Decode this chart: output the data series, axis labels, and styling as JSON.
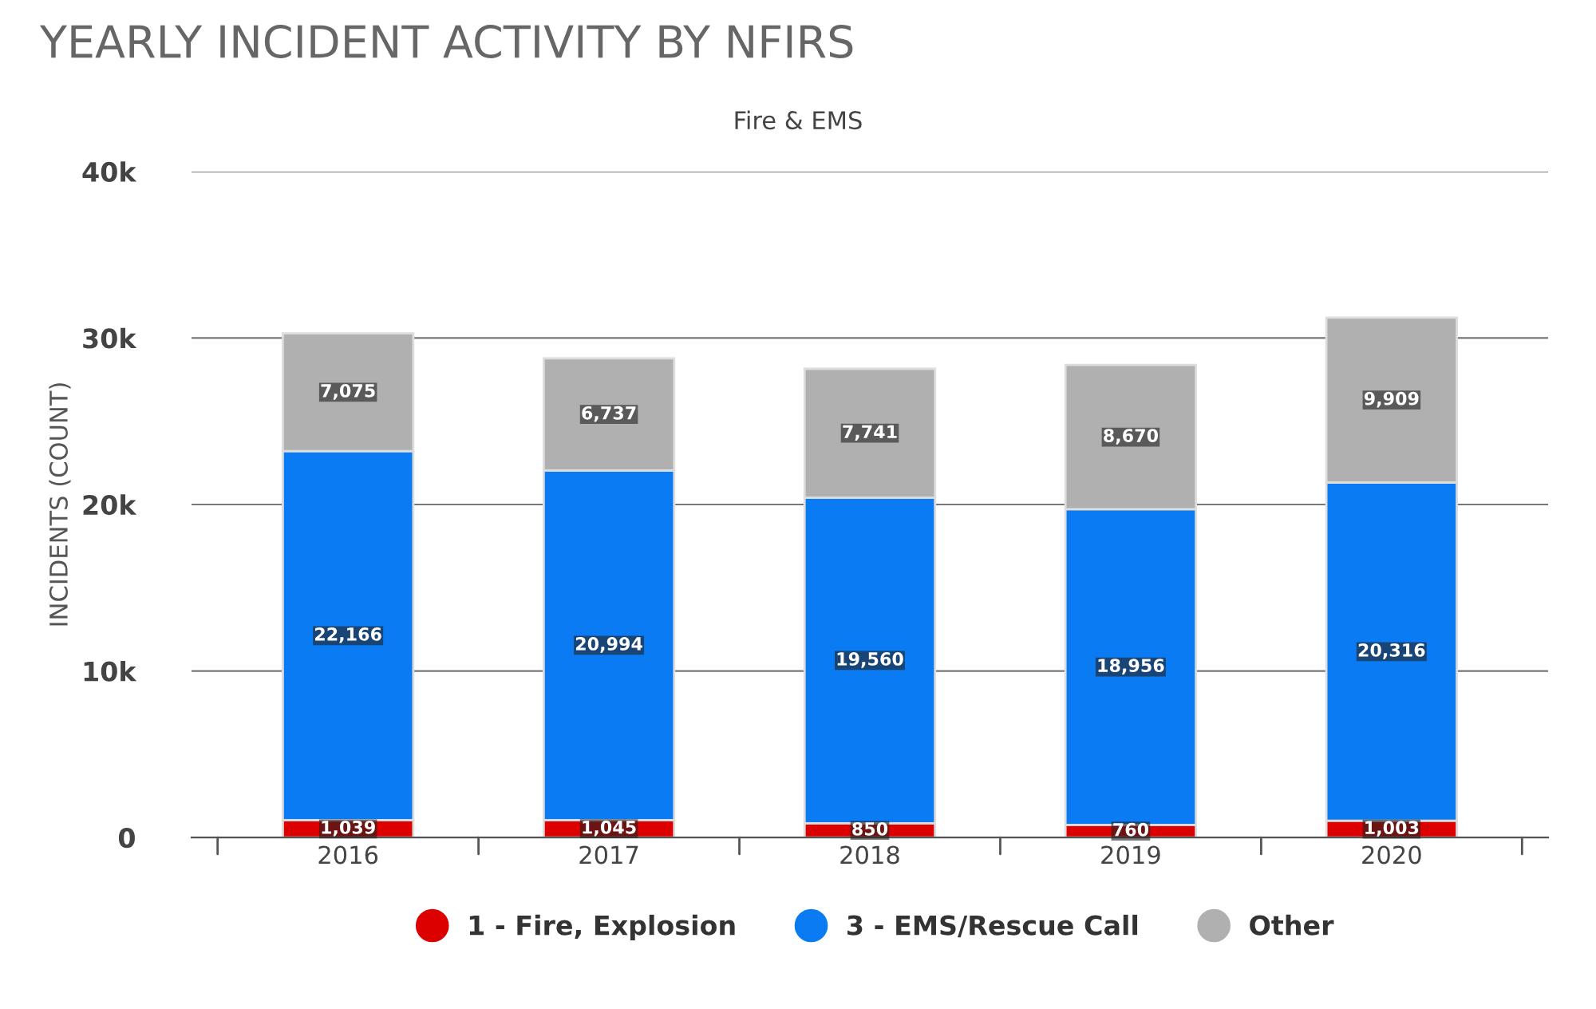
{
  "chart_data": {
    "type": "bar",
    "title": "YEARLY INCIDENT ACTIVITY BY NFIRS",
    "subtitle": "Fire & EMS",
    "ylabel": "INCIDENTS (COUNT)",
    "categories": [
      "2016",
      "2017",
      "2018",
      "2019",
      "2020"
    ],
    "stacked": true,
    "series": [
      {
        "name": "1 - Fire, Explosion",
        "color": "#dd0000",
        "values": [
          1039,
          1045,
          850,
          760,
          1003
        ],
        "value_labels": [
          "1,039",
          "1,045",
          "850",
          "760",
          "1,003"
        ]
      },
      {
        "name": "3 - EMS/Rescue Call",
        "color": "#0a7bf2",
        "values": [
          22166,
          20994,
          19560,
          18956,
          20316
        ],
        "value_labels": [
          "22,166",
          "20,994",
          "19,560",
          "18,956",
          "20,316"
        ]
      },
      {
        "name": "Other",
        "color": "#b0b0b0",
        "values": [
          7075,
          6737,
          7741,
          8670,
          9909
        ],
        "value_labels": [
          "7,075",
          "6,737",
          "7,741",
          "8,670",
          "9,909"
        ]
      }
    ],
    "ylim": [
      0,
      40000
    ],
    "yticks": [
      {
        "value": 0,
        "label": "0"
      },
      {
        "value": 10000,
        "label": "10k"
      },
      {
        "value": 20000,
        "label": "20k"
      },
      {
        "value": 30000,
        "label": "30k"
      },
      {
        "value": 40000,
        "label": "40k"
      }
    ],
    "grid": "y",
    "legend": "bottom",
    "marker": "circle"
  }
}
